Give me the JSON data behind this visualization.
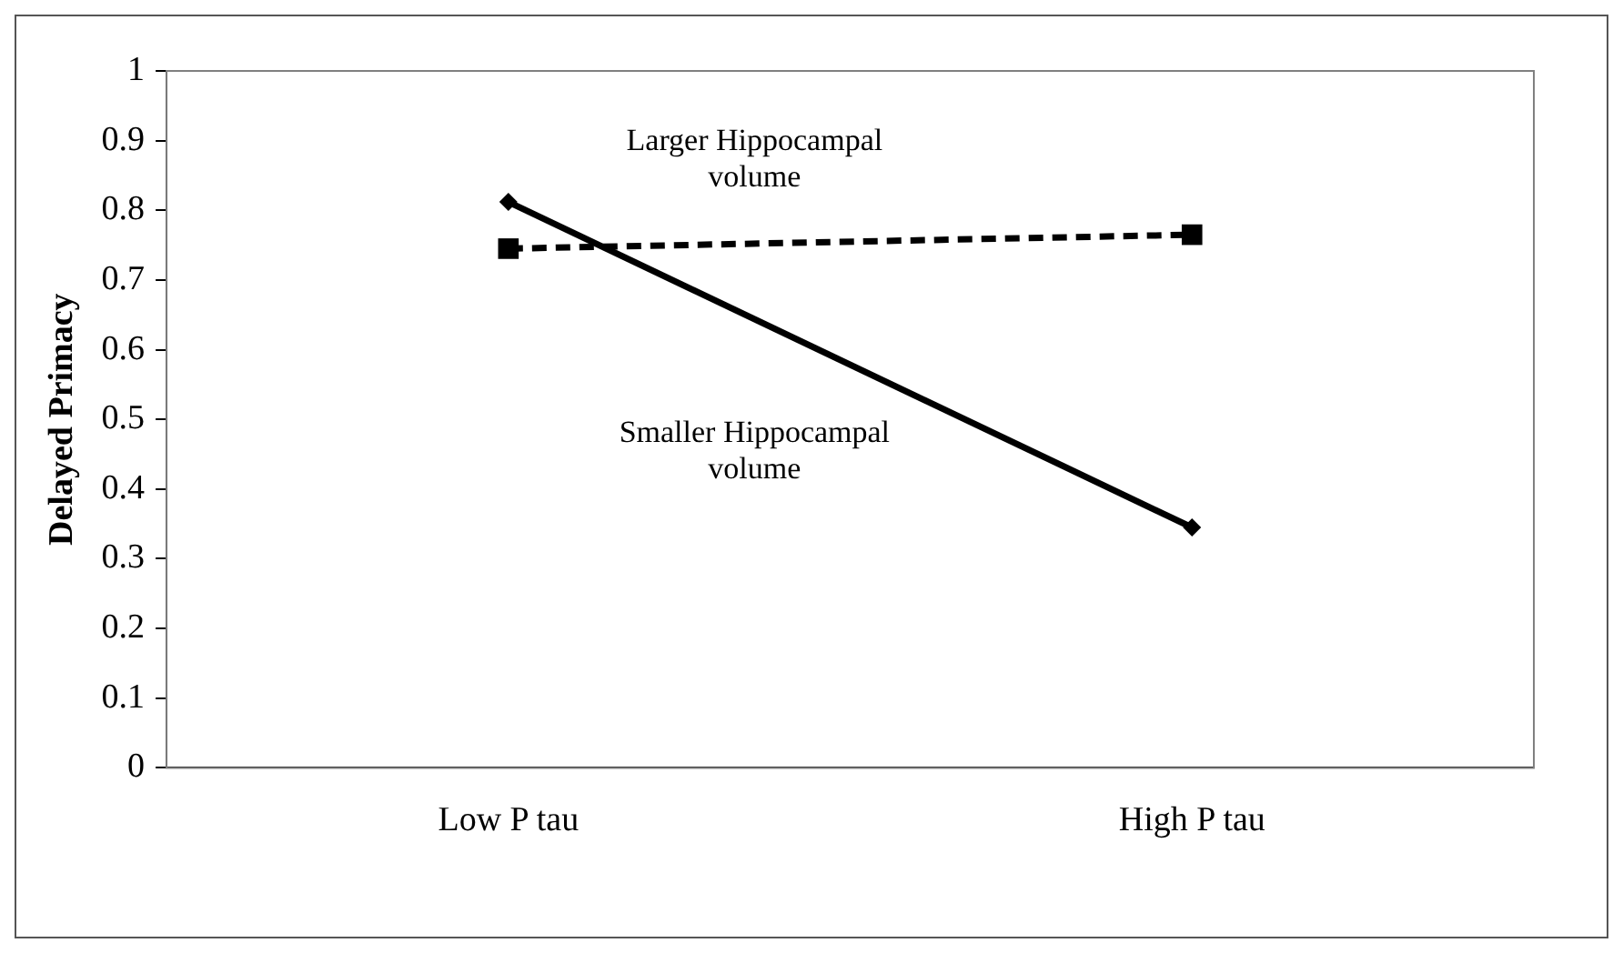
{
  "chart_data": {
    "type": "line",
    "ylabel": "Delayed Primacy",
    "categories": [
      "Low P tau",
      "High P tau"
    ],
    "series": [
      {
        "name": "Larger Hippocampal volume",
        "color": "#000000",
        "values": [
          0.745,
          0.765
        ],
        "marker": "square",
        "line_style": "dashed"
      },
      {
        "name": "Smaller Hippocampal volume",
        "color": "#000000",
        "values": [
          0.812,
          0.345
        ],
        "marker": "diamond",
        "line_style": "solid"
      }
    ],
    "ylim": [
      0,
      1
    ],
    "yticks": [
      0,
      0.1,
      0.2,
      0.3,
      0.4,
      0.5,
      0.6,
      0.7,
      0.8,
      0.9,
      1
    ],
    "grid": false,
    "legend": false
  }
}
